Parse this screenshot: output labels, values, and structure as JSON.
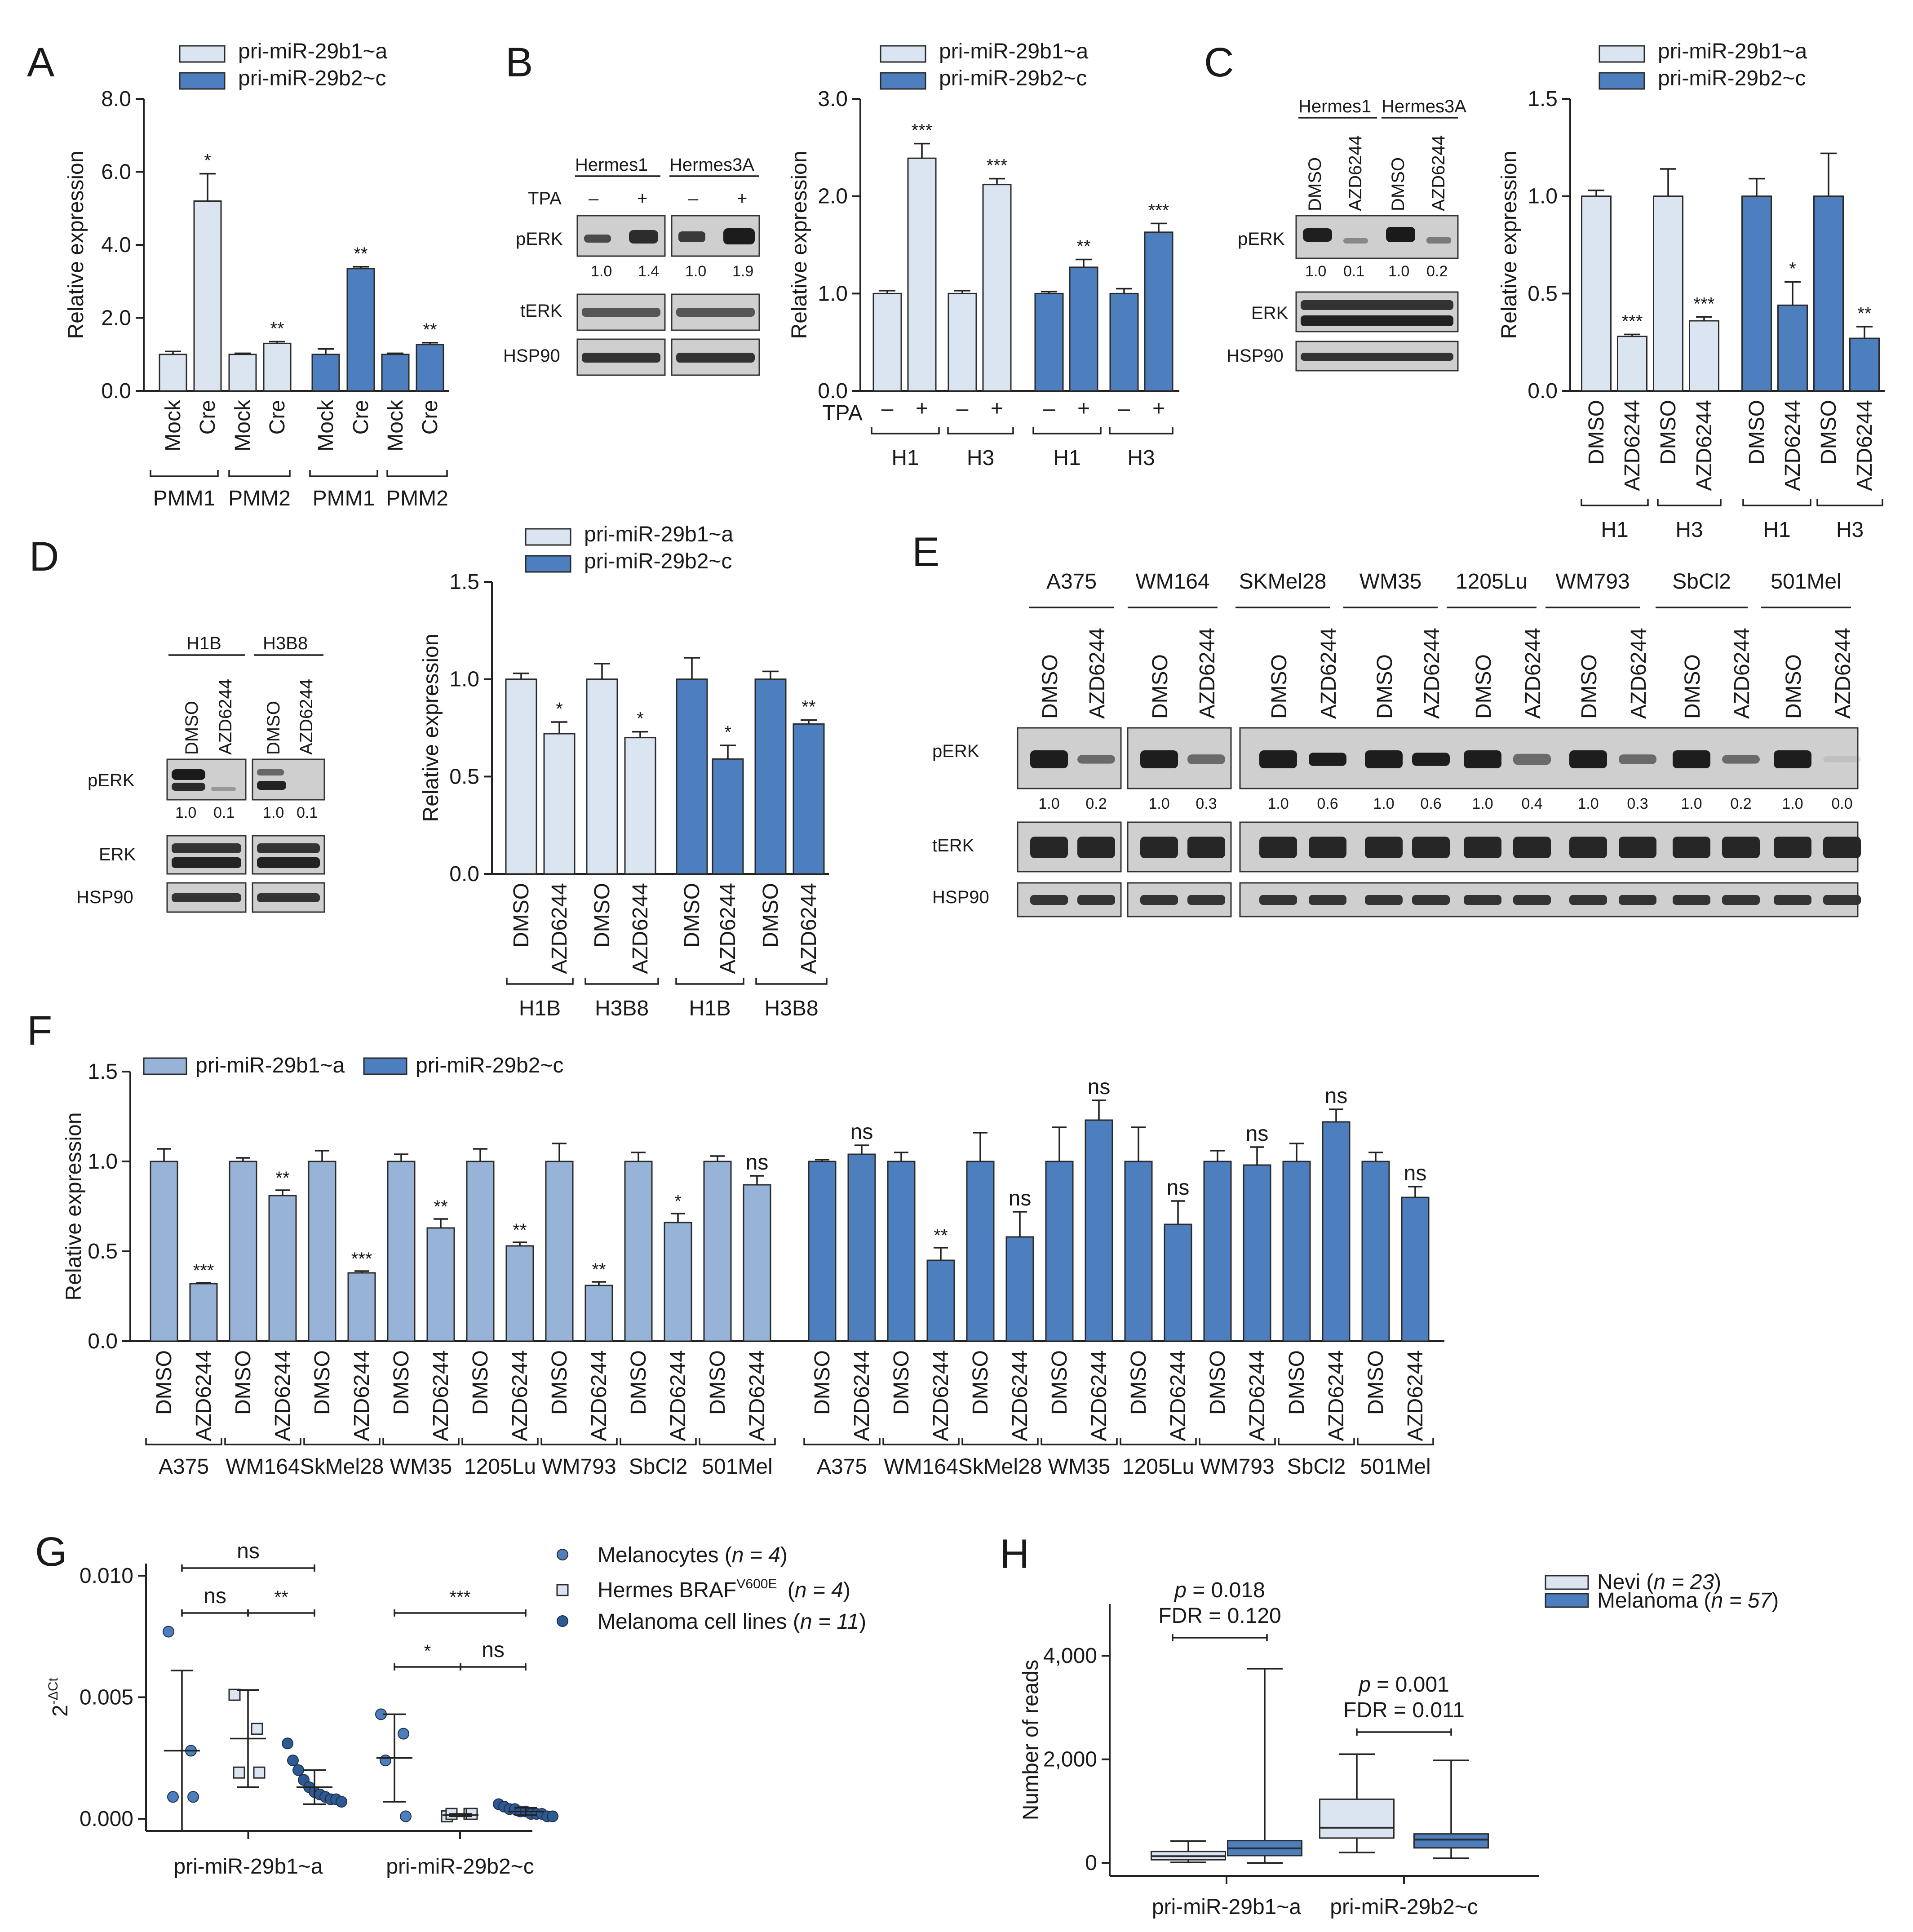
{
  "colors": {
    "light": "#dbe5f1",
    "mid": "#97b4d8",
    "dark": "#4d7ebd",
    "edge": "#2b2b2b",
    "dot_dark": "#2e5a94"
  },
  "series_names": {
    "a": "pri-miR-29b1~a",
    "b": "pri-miR-29b2~c"
  },
  "panels": {
    "A": "A",
    "B": "B",
    "C": "C",
    "D": "D",
    "E": "E",
    "F": "F",
    "G": "G",
    "H": "H"
  },
  "texts": {
    "relexp": "Relative expression",
    "dmso": "DMSO",
    "azd": "AZD6244",
    "mock": "Mock",
    "cre": "Cre",
    "tpa": "TPA",
    "minus": "–",
    "plus": "+",
    "perk": "pERK",
    "terk": "tERK",
    "erk": "ERK",
    "hsp90": "HSP90",
    "hermes1": "Hermes1",
    "hermes3a": "Hermes3A",
    "h1b": "H1B",
    "h3b8": "H3B8",
    "dct": "2",
    "dct_sup": "-ΔCt",
    "reads": "Number of reads",
    "leg_mel": "Melanocytes (",
    "leg_hermes": "Hermes BRAF",
    "leg_hermes_sup": "V600E",
    "leg_lines": "Melanoma cell lines (",
    "n4": "n = 4",
    "n11": "n = 11",
    "close": ")",
    "nevi": "Nevi (",
    "n23": "n = 23",
    "melanoma": "Melanoma (",
    "n57": "n = 57",
    "p1": "p = 0.018",
    "fdr1": "FDR = 0.120",
    "p2": "p = 0.001",
    "fdr2": "FDR = 0.011"
  },
  "wb_values": {
    "B": [
      "1.0",
      "1.4",
      "1.0",
      "1.9"
    ],
    "C": [
      "1.0",
      "0.1",
      "1.0",
      "0.2"
    ],
    "D": [
      "1.0",
      "0.1",
      "1.0",
      "0.1"
    ],
    "E": [
      "1.0",
      "0.2",
      "1.0",
      "0.3",
      "1.0",
      "0.6",
      "1.0",
      "0.6",
      "1.0",
      "0.4",
      "1.0",
      "0.3",
      "1.0",
      "0.2",
      "1.0",
      "0.0"
    ]
  },
  "chart_data": [
    {
      "panel": "A",
      "type": "bar",
      "ylabel": "Relative expression",
      "ylim": [
        0,
        8
      ],
      "yticks": [
        "0.0",
        "2.0",
        "4.0",
        "6.0",
        "8.0"
      ],
      "legend": [
        "pri-miR-29b1~a",
        "pri-miR-29b2~c"
      ],
      "bars": [
        {
          "x": "Mock",
          "group": "PMM1",
          "series": "pri-miR-29b1~a",
          "value": 1.0,
          "err": 0.08,
          "sig": ""
        },
        {
          "x": "Cre",
          "group": "PMM1",
          "series": "pri-miR-29b1~a",
          "value": 5.2,
          "err": 0.75,
          "sig": "*"
        },
        {
          "x": "Mock",
          "group": "PMM2",
          "series": "pri-miR-29b1~a",
          "value": 1.0,
          "err": 0.03,
          "sig": ""
        },
        {
          "x": "Cre",
          "group": "PMM2",
          "series": "pri-miR-29b1~a",
          "value": 1.3,
          "err": 0.05,
          "sig": "**"
        },
        {
          "x": "Mock",
          "group": "PMM1",
          "series": "pri-miR-29b2~c",
          "value": 1.0,
          "err": 0.15,
          "sig": ""
        },
        {
          "x": "Cre",
          "group": "PMM1",
          "series": "pri-miR-29b2~c",
          "value": 3.35,
          "err": 0.05,
          "sig": "**"
        },
        {
          "x": "Mock",
          "group": "PMM2",
          "series": "pri-miR-29b2~c",
          "value": 1.0,
          "err": 0.03,
          "sig": ""
        },
        {
          "x": "Cre",
          "group": "PMM2",
          "series": "pri-miR-29b2~c",
          "value": 1.27,
          "err": 0.05,
          "sig": "**"
        }
      ]
    },
    {
      "panel": "B",
      "type": "bar",
      "ylabel": "Relative expression",
      "ylim": [
        0,
        3
      ],
      "yticks": [
        "0.0",
        "1.0",
        "2.0",
        "3.0"
      ],
      "legend": [
        "pri-miR-29b1~a",
        "pri-miR-29b2~c"
      ],
      "xrow_label": "TPA",
      "bars": [
        {
          "x": "–",
          "group": "H1",
          "series": "pri-miR-29b1~a",
          "value": 1.0,
          "err": 0.03,
          "sig": ""
        },
        {
          "x": "+",
          "group": "H1",
          "series": "pri-miR-29b1~a",
          "value": 2.39,
          "err": 0.15,
          "sig": "***"
        },
        {
          "x": "–",
          "group": "H3",
          "series": "pri-miR-29b1~a",
          "value": 1.0,
          "err": 0.03,
          "sig": ""
        },
        {
          "x": "+",
          "group": "H3",
          "series": "pri-miR-29b1~a",
          "value": 2.12,
          "err": 0.06,
          "sig": "***"
        },
        {
          "x": "–",
          "group": "H1",
          "series": "pri-miR-29b2~c",
          "value": 1.0,
          "err": 0.02,
          "sig": ""
        },
        {
          "x": "+",
          "group": "H1",
          "series": "pri-miR-29b2~c",
          "value": 1.27,
          "err": 0.08,
          "sig": "**"
        },
        {
          "x": "–",
          "group": "H3",
          "series": "pri-miR-29b2~c",
          "value": 1.0,
          "err": 0.05,
          "sig": ""
        },
        {
          "x": "+",
          "group": "H3",
          "series": "pri-miR-29b2~c",
          "value": 1.63,
          "err": 0.09,
          "sig": "***"
        }
      ]
    },
    {
      "panel": "C",
      "type": "bar",
      "ylabel": "Relative expression",
      "ylim": [
        0,
        1.5
      ],
      "yticks": [
        "0.0",
        "0.5",
        "1.0",
        "1.5"
      ],
      "legend": [
        "pri-miR-29b1~a",
        "pri-miR-29b2~c"
      ],
      "bars": [
        {
          "x": "DMSO",
          "group": "H1",
          "series": "pri-miR-29b1~a",
          "value": 1.0,
          "err": 0.03,
          "sig": ""
        },
        {
          "x": "AZD6244",
          "group": "H1",
          "series": "pri-miR-29b1~a",
          "value": 0.28,
          "err": 0.01,
          "sig": "***"
        },
        {
          "x": "DMSO",
          "group": "H3",
          "series": "pri-miR-29b1~a",
          "value": 1.0,
          "err": 0.14,
          "sig": ""
        },
        {
          "x": "AZD6244",
          "group": "H3",
          "series": "pri-miR-29b1~a",
          "value": 0.36,
          "err": 0.02,
          "sig": "***"
        },
        {
          "x": "DMSO",
          "group": "H1",
          "series": "pri-miR-29b2~c",
          "value": 1.0,
          "err": 0.09,
          "sig": ""
        },
        {
          "x": "AZD6244",
          "group": "H1",
          "series": "pri-miR-29b2~c",
          "value": 0.44,
          "err": 0.12,
          "sig": "*"
        },
        {
          "x": "DMSO",
          "group": "H3",
          "series": "pri-miR-29b2~c",
          "value": 1.0,
          "err": 0.22,
          "sig": ""
        },
        {
          "x": "AZD6244",
          "group": "H3",
          "series": "pri-miR-29b2~c",
          "value": 0.27,
          "err": 0.06,
          "sig": "**"
        }
      ]
    },
    {
      "panel": "D",
      "type": "bar",
      "ylabel": "Relative expression",
      "ylim": [
        0,
        1.5
      ],
      "yticks": [
        "0.0",
        "0.5",
        "1.0",
        "1.5"
      ],
      "legend": [
        "pri-miR-29b1~a",
        "pri-miR-29b2~c"
      ],
      "bars": [
        {
          "x": "DMSO",
          "group": "H1B",
          "series": "pri-miR-29b1~a",
          "value": 1.0,
          "err": 0.03,
          "sig": ""
        },
        {
          "x": "AZD6244",
          "group": "H1B",
          "series": "pri-miR-29b1~a",
          "value": 0.72,
          "err": 0.06,
          "sig": "*"
        },
        {
          "x": "DMSO",
          "group": "H3B8",
          "series": "pri-miR-29b1~a",
          "value": 1.0,
          "err": 0.08,
          "sig": ""
        },
        {
          "x": "AZD6244",
          "group": "H3B8",
          "series": "pri-miR-29b1~a",
          "value": 0.7,
          "err": 0.03,
          "sig": "*"
        },
        {
          "x": "DMSO",
          "group": "H1B",
          "series": "pri-miR-29b2~c",
          "value": 1.0,
          "err": 0.11,
          "sig": ""
        },
        {
          "x": "AZD6244",
          "group": "H1B",
          "series": "pri-miR-29b2~c",
          "value": 0.59,
          "err": 0.07,
          "sig": "*"
        },
        {
          "x": "DMSO",
          "group": "H3B8",
          "series": "pri-miR-29b2~c",
          "value": 1.0,
          "err": 0.04,
          "sig": ""
        },
        {
          "x": "AZD6244",
          "group": "H3B8",
          "series": "pri-miR-29b2~c",
          "value": 0.77,
          "err": 0.02,
          "sig": "**"
        }
      ]
    },
    {
      "panel": "F",
      "type": "bar",
      "ylabel": "Relative expression",
      "ylim": [
        0,
        1.5
      ],
      "yticks": [
        "0.0",
        "0.5",
        "1.0",
        "1.5"
      ],
      "legend": [
        "pri-miR-29b1~a",
        "pri-miR-29b2~c"
      ],
      "groups": [
        "A375",
        "WM164",
        "SkMel28",
        "WM35",
        "1205Lu",
        "WM793",
        "SbCl2",
        "501Mel"
      ],
      "series": [
        {
          "name": "pri-miR-29b1~a",
          "values": [
            1.0,
            0.32,
            1.0,
            0.81,
            1.0,
            0.38,
            1.0,
            0.63,
            1.0,
            0.53,
            1.0,
            0.31,
            1.0,
            0.66,
            1.0,
            0.87
          ],
          "errors": [
            0.07,
            0.005,
            0.02,
            0.03,
            0.06,
            0.01,
            0.04,
            0.05,
            0.07,
            0.02,
            0.1,
            0.02,
            0.05,
            0.05,
            0.03,
            0.05
          ],
          "sig": [
            "",
            "***",
            "",
            "**",
            "",
            "***",
            "",
            "**",
            "",
            "**",
            "",
            "**",
            "",
            "*",
            "",
            "ns"
          ]
        },
        {
          "name": "pri-miR-29b2~c",
          "values": [
            1.0,
            1.04,
            1.0,
            0.45,
            1.0,
            0.58,
            1.0,
            1.23,
            1.0,
            0.65,
            1.0,
            0.98,
            1.0,
            1.22,
            1.0,
            0.8
          ],
          "errors": [
            0.01,
            0.05,
            0.05,
            0.07,
            0.16,
            0.14,
            0.19,
            0.11,
            0.19,
            0.13,
            0.06,
            0.1,
            0.1,
            0.07,
            0.05,
            0.06
          ],
          "sig": [
            "",
            "ns",
            "",
            "**",
            "",
            "ns",
            "",
            "ns",
            "",
            "ns",
            "",
            "ns",
            "",
            "ns",
            "",
            "ns"
          ]
        }
      ]
    },
    {
      "panel": "G",
      "type": "scatter",
      "ylabel": "2-ΔCt",
      "ylim": [
        -0.0005,
        0.0105
      ],
      "yticks": [
        "0.000",
        "0.005",
        "0.010"
      ],
      "xcategories": [
        "pri-miR-29b1~a",
        "pri-miR-29b2~c"
      ],
      "groups": [
        {
          "name": "Melanocytes",
          "n": 4,
          "b1": [
            0.0077,
            0.0028,
            0.0009,
            0.0009
          ],
          "b1_mean": 0.0028,
          "b1_sd": 0.0033,
          "b2": [
            0.0043,
            0.0035,
            0.0024,
            0.0001
          ],
          "b2_mean": 0.0025,
          "b2_sd": 0.0018
        },
        {
          "name": "Hermes BRAF V600E",
          "n": 4,
          "b1": [
            0.0051,
            0.0037,
            0.0019,
            0.0019
          ],
          "b1_mean": 0.0033,
          "b1_sd": 0.002,
          "b2": [
            0.0001,
            0.0002,
            0.0002,
            0.0002
          ],
          "b2_mean": 0.00015,
          "b2_sd": 5e-05
        },
        {
          "name": "Melanoma cell lines",
          "n": 11,
          "b1": [
            0.0031,
            0.0024,
            0.002,
            0.0016,
            0.0013,
            0.0011,
            0.001,
            0.0009,
            0.0008,
            0.0008,
            0.0007
          ],
          "b1_mean": 0.0013,
          "b1_sd": 0.0007,
          "b2": [
            0.0006,
            0.0005,
            0.0004,
            0.0004,
            0.0003,
            0.0003,
            0.0002,
            0.0002,
            0.0002,
            0.0001,
            0.0001
          ],
          "b2_mean": 0.0003,
          "b2_sd": 0.00015
        }
      ],
      "comparisons": [
        {
          "category": "pri-miR-29b1~a",
          "pair": "Melanocytes vs Melanoma cell lines",
          "label": "ns"
        },
        {
          "category": "pri-miR-29b1~a",
          "pair": "Melanocytes vs Hermes",
          "label": "ns"
        },
        {
          "category": "pri-miR-29b1~a",
          "pair": "Hermes vs Melanoma cell lines",
          "label": "**"
        },
        {
          "category": "pri-miR-29b2~c",
          "pair": "Melanocytes vs Melanoma cell lines",
          "label": "***"
        },
        {
          "category": "pri-miR-29b2~c",
          "pair": "Melanocytes vs Hermes",
          "label": "*"
        },
        {
          "category": "pri-miR-29b2~c",
          "pair": "Hermes vs Melanoma cell lines",
          "label": "ns"
        }
      ]
    },
    {
      "panel": "H",
      "type": "box",
      "ylabel": "Number of reads",
      "ylim": [
        -250,
        5000
      ],
      "yticks": [
        "0",
        "2,000",
        "4,000"
      ],
      "xcategories": [
        "pri-miR-29b1~a",
        "pri-miR-29b2~c"
      ],
      "boxes": [
        {
          "category": "pri-miR-29b1~a",
          "group": "Nevi",
          "min": 10,
          "q1": 60,
          "median": 130,
          "q3": 220,
          "max": 420
        },
        {
          "category": "pri-miR-29b1~a",
          "group": "Melanoma",
          "min": 0,
          "q1": 140,
          "median": 280,
          "q3": 430,
          "max": 3750
        },
        {
          "category": "pri-miR-29b2~c",
          "group": "Nevi",
          "min": 200,
          "q1": 480,
          "median": 680,
          "q3": 1230,
          "max": 2100
        },
        {
          "category": "pri-miR-29b2~c",
          "group": "Melanoma",
          "min": 90,
          "q1": 290,
          "median": 450,
          "q3": 560,
          "max": 1980
        }
      ]
    }
  ]
}
